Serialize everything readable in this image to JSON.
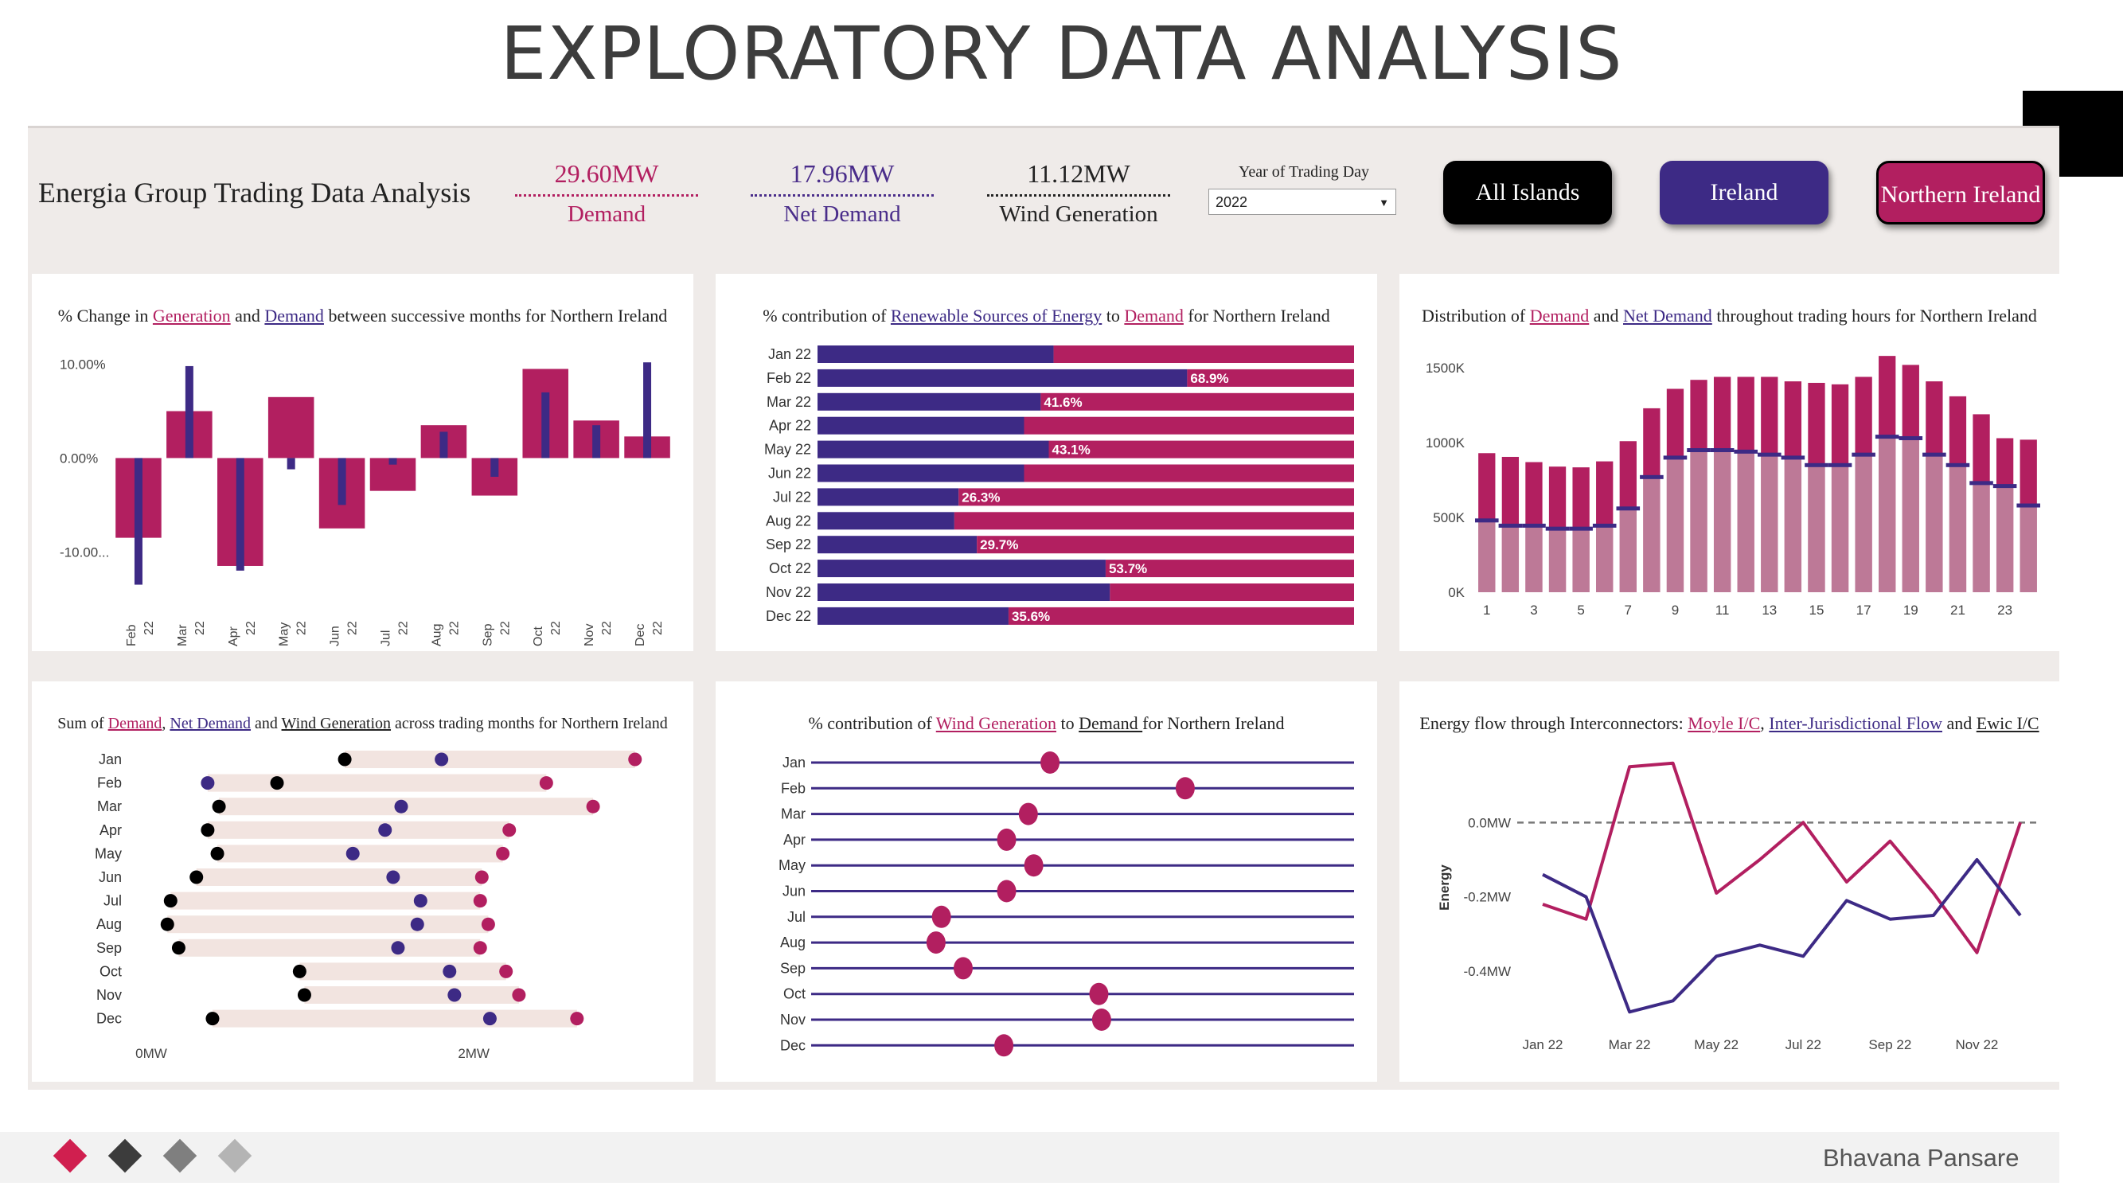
{
  "slide_title": "EXPLORATORY DATA ANALYSIS",
  "header": {
    "title": "Energia Group Trading Data Analysis",
    "kpis": [
      {
        "value": "29.60MW",
        "label": "Demand",
        "color": "#b21f60"
      },
      {
        "value": "17.96MW",
        "label": "Net Demand",
        "color": "#4a2d8a"
      },
      {
        "value": "11.12MW",
        "label": "Wind Generation",
        "color": "#222222"
      }
    ],
    "year_filter": {
      "label": "Year of Trading Day",
      "value": "2022"
    },
    "island_buttons": [
      {
        "label": "All Islands",
        "color": "#000000"
      },
      {
        "label": "Ireland",
        "color": "#3d2a85"
      },
      {
        "label": "Northern Ireland",
        "color": "#b21f60",
        "selected": true
      }
    ]
  },
  "panels": {
    "p1": {
      "t0": "% Change in ",
      "t1": "Generation",
      "t2": " and ",
      "t3": "Demand",
      "t4": " between successive months for Northern Ireland"
    },
    "p2": {
      "t0": "% contribution of ",
      "t1": "Renewable Sources of Energy",
      "t2": " to ",
      "t3": "Demand",
      "t4": " for Northern Ireland"
    },
    "p3": {
      "t0": "Distribution of ",
      "t1": "Demand",
      "t2": " and ",
      "t3": "Net Demand",
      "t4": " throughout trading hours for Northern Ireland"
    },
    "p4": {
      "t0": "Sum of ",
      "t1": "Demand",
      "t2": ", ",
      "t3": "Net Demand",
      "t4": " and ",
      "t5": "Wind Generation",
      "t6": " across trading months for Northern Ireland"
    },
    "p5": {
      "t0": "% contribution of ",
      "t1": "Wind Generation",
      "t2": " to ",
      "t3": "Demand ",
      "t4": "for Northern Ireland"
    },
    "p6": {
      "t0": "Energy flow through Interconnectors: ",
      "t1": "Moyle I/C",
      "t2": ", ",
      "t3": "Inter-Jurisdictional Flow",
      "t4": " and ",
      "t5": "Ewic I/C"
    }
  },
  "colors": {
    "pink": "#b21f60",
    "purple": "#3d2a85",
    "black": "#000000",
    "track": "#f2e4e0"
  },
  "chart_data": [
    {
      "id": "pct_change",
      "type": "bar",
      "categories": [
        "Feb 22",
        "Mar 22",
        "Apr 22",
        "May 22",
        "Jun 22",
        "Jul 22",
        "Aug 22",
        "Sep 22",
        "Oct 22",
        "Nov 22",
        "Dec 22"
      ],
      "series": [
        {
          "name": "Demand",
          "values": [
            -8.5,
            5.0,
            -11.5,
            6.5,
            -7.5,
            -3.5,
            3.5,
            -4.0,
            9.5,
            4.0,
            2.3
          ]
        },
        {
          "name": "Generation",
          "values": [
            -13.5,
            9.8,
            -12.0,
            -1.2,
            -5.0,
            -0.7,
            2.8,
            -2.0,
            7.0,
            3.5,
            10.2
          ]
        }
      ],
      "ytick_labels": [
        "10.00%",
        "0.00%",
        "-10.00..."
      ],
      "ylim": [
        -16,
        12
      ]
    },
    {
      "id": "renewable_pct",
      "type": "bar",
      "orientation": "horizontal",
      "categories": [
        "Jan 22",
        "Feb 22",
        "Mar 22",
        "Apr 22",
        "May 22",
        "Jun 22",
        "Jul 22",
        "Aug 22",
        "Sep 22",
        "Oct 22",
        "Nov 22",
        "Dec 22"
      ],
      "values": [
        44.0,
        68.9,
        41.6,
        38.5,
        43.1,
        38.5,
        26.3,
        25.5,
        29.7,
        53.7,
        54.5,
        35.6
      ],
      "data_labels": [
        "",
        "68.9%",
        "41.6%",
        "",
        "43.1%",
        "",
        "26.3%",
        "",
        "29.7%",
        "53.7%",
        "",
        "35.6%"
      ],
      "xlim": [
        0,
        100
      ]
    },
    {
      "id": "hourly_demand",
      "type": "bar",
      "x": [
        0,
        1,
        2,
        3,
        4,
        5,
        6,
        7,
        8,
        9,
        10,
        11,
        12,
        13,
        14,
        15,
        16,
        17,
        18,
        19,
        20,
        21,
        22,
        23
      ],
      "xtick_labels": [
        "1",
        "3",
        "5",
        "7",
        "9",
        "11",
        "13",
        "15",
        "17",
        "19",
        "21",
        "23"
      ],
      "series": [
        {
          "name": "Demand",
          "values": [
            930,
            905,
            870,
            840,
            835,
            875,
            1010,
            1230,
            1360,
            1420,
            1440,
            1440,
            1440,
            1410,
            1400,
            1390,
            1440,
            1580,
            1520,
            1410,
            1310,
            1190,
            1030,
            1020
          ]
        },
        {
          "name": "Net Demand",
          "values": [
            480,
            445,
            445,
            425,
            425,
            445,
            560,
            770,
            900,
            950,
            950,
            940,
            920,
            900,
            850,
            850,
            920,
            1040,
            1030,
            920,
            850,
            730,
            710,
            580
          ]
        }
      ],
      "ytick_labels": [
        "1500K",
        "1000K",
        "500K",
        "0K"
      ],
      "ylim": [
        0,
        1650
      ]
    },
    {
      "id": "monthly_sums",
      "type": "dot",
      "categories": [
        "Jan",
        "Feb",
        "Mar",
        "Apr",
        "May",
        "Jun",
        "Jul",
        "Aug",
        "Sep",
        "Oct",
        "Nov",
        "Dec"
      ],
      "series": [
        {
          "name": "Wind Generation",
          "values": [
            1.2,
            0.78,
            0.42,
            0.35,
            0.41,
            0.28,
            0.12,
            0.1,
            0.17,
            0.92,
            0.95,
            0.38
          ]
        },
        {
          "name": "Net Demand",
          "values": [
            1.8,
            0.35,
            1.55,
            1.45,
            1.25,
            1.5,
            1.67,
            1.65,
            1.53,
            1.85,
            1.88,
            2.1
          ]
        },
        {
          "name": "Demand",
          "values": [
            3.0,
            2.45,
            2.74,
            2.22,
            2.18,
            2.05,
            2.04,
            2.09,
            2.04,
            2.2,
            2.28,
            2.64
          ]
        }
      ],
      "xtick_labels": [
        "0MW",
        "2MW"
      ],
      "xlim": [
        0,
        3.1
      ]
    },
    {
      "id": "wind_pct",
      "type": "dot",
      "categories": [
        "Jan",
        "Feb",
        "Mar",
        "Apr",
        "May",
        "Jun",
        "Jul",
        "Aug",
        "Sep",
        "Oct",
        "Nov",
        "Dec"
      ],
      "values": [
        44.0,
        68.9,
        40.0,
        36.0,
        41.0,
        36.0,
        24.0,
        23.0,
        28.0,
        53.0,
        53.5,
        35.5
      ],
      "xlim": [
        0,
        100
      ]
    },
    {
      "id": "interconnectors",
      "type": "line",
      "x": [
        "Jan 22",
        "Feb 22",
        "Mar 22",
        "Apr 22",
        "May 22",
        "Jun 22",
        "Jul 22",
        "Aug 22",
        "Sep 22",
        "Oct 22",
        "Nov 22",
        "Dec 22"
      ],
      "xtick_labels": [
        "Jan 22",
        "Mar 22",
        "May 22",
        "Jul 22",
        "Sep 22",
        "Nov 22"
      ],
      "ytick_labels": [
        "0.0MW",
        "-0.2MW",
        "-0.4MW"
      ],
      "ylabel": "Energy",
      "ylim": [
        -0.52,
        0.17
      ],
      "series": [
        {
          "name": "Moyle I/C",
          "values": [
            -0.22,
            -0.26,
            0.15,
            0.16,
            -0.19,
            -0.1,
            0.0,
            -0.16,
            -0.05,
            -0.19,
            -0.35,
            0.0
          ]
        },
        {
          "name": "Inter-Jurisdictional Flow",
          "values": [
            -0.14,
            -0.2,
            -0.51,
            -0.48,
            -0.36,
            -0.33,
            -0.36,
            -0.21,
            -0.26,
            -0.25,
            -0.1,
            -0.25
          ]
        }
      ]
    }
  ],
  "footer": {
    "author": "Bhavana Pansare"
  }
}
